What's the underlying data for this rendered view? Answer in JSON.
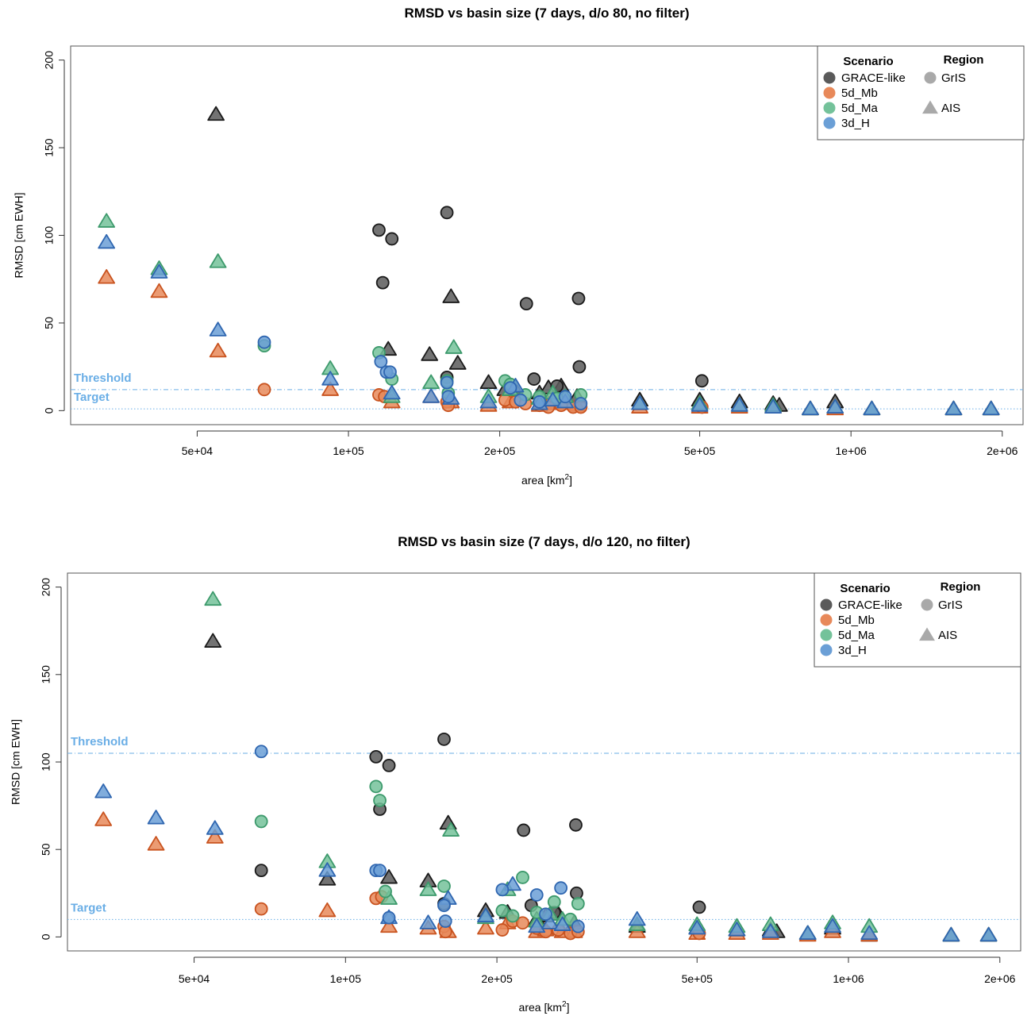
{
  "colors": {
    "GRACE-like": {
      "fill": "#5a5a5a",
      "stroke": "#1a1a1a"
    },
    "5d_Mb": {
      "fill": "#e8895a",
      "stroke": "#c9531f"
    },
    "5d_Ma": {
      "fill": "#74c29a",
      "stroke": "#3d9a6c"
    },
    "3d_H": {
      "fill": "#6b9fd6",
      "stroke": "#2f66b0"
    },
    "region_marker": "#a9a9a9",
    "refline": "#6aaee6"
  },
  "chart_data": [
    {
      "type": "scatter",
      "title": "RMSD vs basin size (7 days, d/o 80, no filter)",
      "xlabel": "area [km",
      "xlabel_sup": "2",
      "xlabel_close": "]",
      "ylabel": "RMSD [cm EWH]",
      "x_scale": "log",
      "xlim": [
        28000,
        2200000
      ],
      "ylim": [
        -8,
        208
      ],
      "x_ticks": [
        50000,
        100000,
        200000,
        500000,
        1000000,
        2000000
      ],
      "x_tick_labels": [
        "5e+04",
        "1e+05",
        "2e+05",
        "5e+05",
        "1e+06",
        "2e+06"
      ],
      "y_ticks": [
        0,
        50,
        100,
        150,
        200
      ],
      "y_tick_labels": [
        "0",
        "50",
        "100",
        "150",
        "200"
      ],
      "grid": false,
      "legend_position": "top-right",
      "legend": {
        "scenario_title": "Scenario",
        "region_title": "Region",
        "scenarios": [
          "GRACE-like",
          "5d_Mb",
          "5d_Ma",
          "3d_H"
        ],
        "regions": [
          {
            "label": "GrIS",
            "shape": "circle"
          },
          {
            "label": "AIS",
            "shape": "triangle"
          }
        ]
      },
      "reference_lines": [
        {
          "label": "Threshold",
          "y": 12,
          "style": "dashdot"
        },
        {
          "label": "Target",
          "y": 1,
          "style": "dotted"
        }
      ],
      "series": [
        {
          "name": "GRACE-like",
          "region": "AIS",
          "x": [
            54500,
            120000,
            145000,
            160000,
            165000,
            190000,
            205000,
            215000,
            240000,
            250000,
            265000,
            285000,
            380000,
            500000,
            600000,
            700000,
            720000,
            830000,
            930000,
            1100000,
            1600000,
            1900000
          ],
          "y": [
            169,
            35,
            32,
            65,
            27,
            16,
            12,
            12,
            10,
            13,
            14,
            8,
            6,
            6,
            5,
            4,
            3,
            1,
            5,
            1,
            1,
            1
          ]
        },
        {
          "name": "GRACE-like",
          "region": "GrIS",
          "x": [
            115000,
            117000,
            122000,
            157000,
            157000,
            226000,
            234000,
            260000,
            287000,
            288000,
            505000
          ],
          "y": [
            103,
            73,
            98,
            113,
            19,
            61,
            18,
            14,
            64,
            25,
            17
          ]
        },
        {
          "name": "5d_Mb",
          "region": "AIS",
          "x": [
            33000,
            42000,
            55000,
            92000,
            122000,
            146000,
            160000,
            190000,
            210000,
            240000,
            250000,
            270000,
            285000,
            380000,
            500000,
            600000,
            700000,
            830000,
            930000,
            1100000,
            1600000,
            1900000
          ],
          "y": [
            76,
            68,
            34,
            12,
            5,
            8,
            5,
            3,
            5,
            3,
            4,
            4,
            3,
            2,
            2,
            2,
            2,
            1,
            1,
            1,
            1,
            1
          ]
        },
        {
          "name": "5d_Mb",
          "region": "GrIS",
          "x": [
            68000,
            115000,
            118000,
            157000,
            158000,
            205000,
            215000,
            225000,
            240000,
            250000,
            265000,
            280000,
            290000,
            505000
          ],
          "y": [
            12,
            9,
            8,
            5,
            3,
            6,
            5,
            4,
            3,
            2,
            3,
            2,
            2,
            2
          ]
        },
        {
          "name": "5d_Ma",
          "region": "AIS",
          "x": [
            33000,
            42000,
            55000,
            92000,
            122000,
            146000,
            162000,
            190000,
            210000,
            240000,
            255000,
            270000,
            380000,
            500000,
            600000,
            700000,
            830000,
            930000,
            1100000,
            1600000,
            1900000
          ],
          "y": [
            108,
            81,
            85,
            24,
            8,
            16,
            36,
            8,
            12,
            7,
            10,
            8,
            4,
            4,
            3,
            3,
            1,
            2,
            1,
            1,
            1
          ]
        },
        {
          "name": "5d_Ma",
          "region": "GrIS",
          "x": [
            68000,
            115000,
            122000,
            157000,
            158000,
            205000,
            210000,
            225000,
            240000,
            260000,
            290000
          ],
          "y": [
            37,
            33,
            18,
            17,
            10,
            17,
            15,
            9,
            8,
            7,
            9
          ]
        },
        {
          "name": "3d_H",
          "region": "AIS",
          "x": [
            33000,
            42000,
            55000,
            92000,
            122000,
            146000,
            160000,
            190000,
            215000,
            240000,
            255000,
            270000,
            380000,
            500000,
            600000,
            700000,
            830000,
            930000,
            1100000,
            1600000,
            1900000
          ],
          "y": [
            96,
            79,
            46,
            18,
            10,
            8,
            7,
            5,
            14,
            4,
            6,
            5,
            4,
            3,
            3,
            2,
            1,
            2,
            1,
            1,
            1
          ]
        },
        {
          "name": "3d_H",
          "region": "GrIS",
          "x": [
            68000,
            116000,
            119000,
            121000,
            157000,
            158000,
            210000,
            220000,
            240000,
            270000,
            290000
          ],
          "y": [
            39,
            28,
            22,
            22,
            16,
            8,
            13,
            6,
            5,
            8,
            4
          ]
        }
      ]
    },
    {
      "type": "scatter",
      "title": "RMSD vs basin size (7 days, d/o 120, no filter)",
      "xlabel": "area [km",
      "xlabel_sup": "2",
      "xlabel_close": "]",
      "ylabel": "RMSD [cm EWH]",
      "x_scale": "log",
      "xlim": [
        28000,
        2200000
      ],
      "ylim": [
        -8,
        208
      ],
      "x_ticks": [
        50000,
        100000,
        200000,
        500000,
        1000000,
        2000000
      ],
      "x_tick_labels": [
        "5e+04",
        "1e+05",
        "2e+05",
        "5e+05",
        "1e+06",
        "2e+06"
      ],
      "y_ticks": [
        0,
        50,
        100,
        150,
        200
      ],
      "y_tick_labels": [
        "0",
        "50",
        "100",
        "150",
        "200"
      ],
      "grid": false,
      "legend_position": "top-right",
      "legend": {
        "scenario_title": "Scenario",
        "region_title": "Region",
        "scenarios": [
          "GRACE-like",
          "5d_Mb",
          "5d_Ma",
          "3d_H"
        ],
        "regions": [
          {
            "label": "GrIS",
            "shape": "circle"
          },
          {
            "label": "AIS",
            "shape": "triangle"
          }
        ]
      },
      "reference_lines": [
        {
          "label": "Threshold",
          "y": 105,
          "style": "dashdot"
        },
        {
          "label": "Target",
          "y": 10,
          "style": "dotted"
        }
      ],
      "series": [
        {
          "name": "GRACE-like",
          "region": "AIS",
          "x": [
            54500,
            92000,
            122000,
            146000,
            160000,
            190000,
            210000,
            240000,
            250000,
            265000,
            285000,
            380000,
            500000,
            600000,
            700000,
            720000,
            830000,
            930000,
            1100000,
            1600000,
            1900000
          ],
          "y": [
            169,
            33,
            34,
            32,
            65,
            15,
            14,
            10,
            12,
            13,
            8,
            6,
            5,
            4,
            4,
            3,
            2,
            5,
            1,
            1,
            1
          ]
        },
        {
          "name": "GRACE-like",
          "region": "GrIS",
          "x": [
            68000,
            115000,
            117000,
            122000,
            157000,
            157000,
            226000,
            234000,
            260000,
            287000,
            288000,
            505000
          ],
          "y": [
            38,
            103,
            73,
            98,
            113,
            19,
            61,
            18,
            14,
            64,
            25,
            17
          ]
        },
        {
          "name": "5d_Mb",
          "region": "AIS",
          "x": [
            33000,
            42000,
            55000,
            92000,
            122000,
            146000,
            160000,
            190000,
            210000,
            240000,
            250000,
            270000,
            285000,
            380000,
            500000,
            600000,
            700000,
            830000,
            930000,
            1100000,
            1600000,
            1900000
          ],
          "y": [
            67,
            53,
            57,
            15,
            6,
            5,
            3,
            5,
            8,
            3,
            4,
            3,
            3,
            3,
            2,
            2,
            2,
            1,
            3,
            1,
            1,
            1
          ]
        },
        {
          "name": "5d_Mb",
          "region": "GrIS",
          "x": [
            68000,
            115000,
            118000,
            157000,
            158000,
            205000,
            215000,
            225000,
            240000,
            250000,
            265000,
            280000,
            290000,
            505000
          ],
          "y": [
            16,
            22,
            23,
            6,
            3,
            4,
            9,
            8,
            5,
            3,
            4,
            2,
            3,
            2
          ]
        },
        {
          "name": "5d_Ma",
          "region": "AIS",
          "x": [
            54500,
            92000,
            122000,
            146000,
            162000,
            190000,
            210000,
            240000,
            255000,
            270000,
            380000,
            500000,
            600000,
            700000,
            830000,
            930000,
            1100000,
            1600000,
            1900000
          ],
          "y": [
            193,
            43,
            22,
            27,
            61,
            11,
            27,
            9,
            13,
            10,
            7,
            7,
            6,
            7,
            2,
            8,
            6,
            1,
            1
          ]
        },
        {
          "name": "5d_Ma",
          "region": "GrIS",
          "x": [
            68000,
            115000,
            117000,
            120000,
            157000,
            205000,
            215000,
            225000,
            240000,
            260000,
            280000,
            290000
          ],
          "y": [
            66,
            86,
            78,
            26,
            29,
            15,
            12,
            34,
            14,
            20,
            10,
            19
          ]
        },
        {
          "name": "3d_H",
          "region": "AIS",
          "x": [
            33000,
            42000,
            55000,
            92000,
            122000,
            146000,
            160000,
            190000,
            215000,
            240000,
            255000,
            270000,
            380000,
            500000,
            600000,
            700000,
            830000,
            930000,
            1100000,
            1600000,
            1900000
          ],
          "y": [
            83,
            68,
            62,
            38,
            11,
            8,
            22,
            12,
            30,
            6,
            8,
            7,
            10,
            5,
            4,
            3,
            2,
            6,
            2,
            1,
            1
          ]
        },
        {
          "name": "3d_H",
          "region": "GrIS",
          "x": [
            68000,
            115000,
            117000,
            122000,
            157000,
            158000,
            205000,
            240000,
            250000,
            268000,
            290000
          ],
          "y": [
            106,
            38,
            38,
            11,
            18,
            9,
            27,
            24,
            13,
            28,
            6
          ]
        }
      ]
    }
  ]
}
